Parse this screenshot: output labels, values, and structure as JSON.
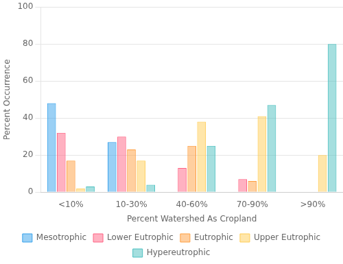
{
  "chart_data": {
    "type": "bar",
    "categories": [
      "<10%",
      "10-30%",
      "40-60%",
      "70-90%",
      ">90%"
    ],
    "series": [
      {
        "name": "Mesotrophic",
        "values": [
          48,
          27,
          0,
          0,
          0
        ]
      },
      {
        "name": "Lower Eutrophic",
        "values": [
          32,
          30,
          13,
          7,
          0
        ]
      },
      {
        "name": "Eutrophic",
        "values": [
          17,
          23,
          25,
          6,
          0
        ]
      },
      {
        "name": "Upper Eutrophic",
        "values": [
          2,
          17,
          38,
          41,
          20
        ]
      },
      {
        "name": "Hypereutrophic",
        "values": [
          3,
          4,
          25,
          47,
          80
        ]
      }
    ],
    "xlabel": "Percent Watershed As Cropland",
    "ylabel": "Percent Occurrence",
    "ylim": [
      0,
      100
    ],
    "yticks": [
      0,
      20,
      40,
      60,
      80,
      100
    ],
    "grid": true,
    "legend": "bottom"
  }
}
